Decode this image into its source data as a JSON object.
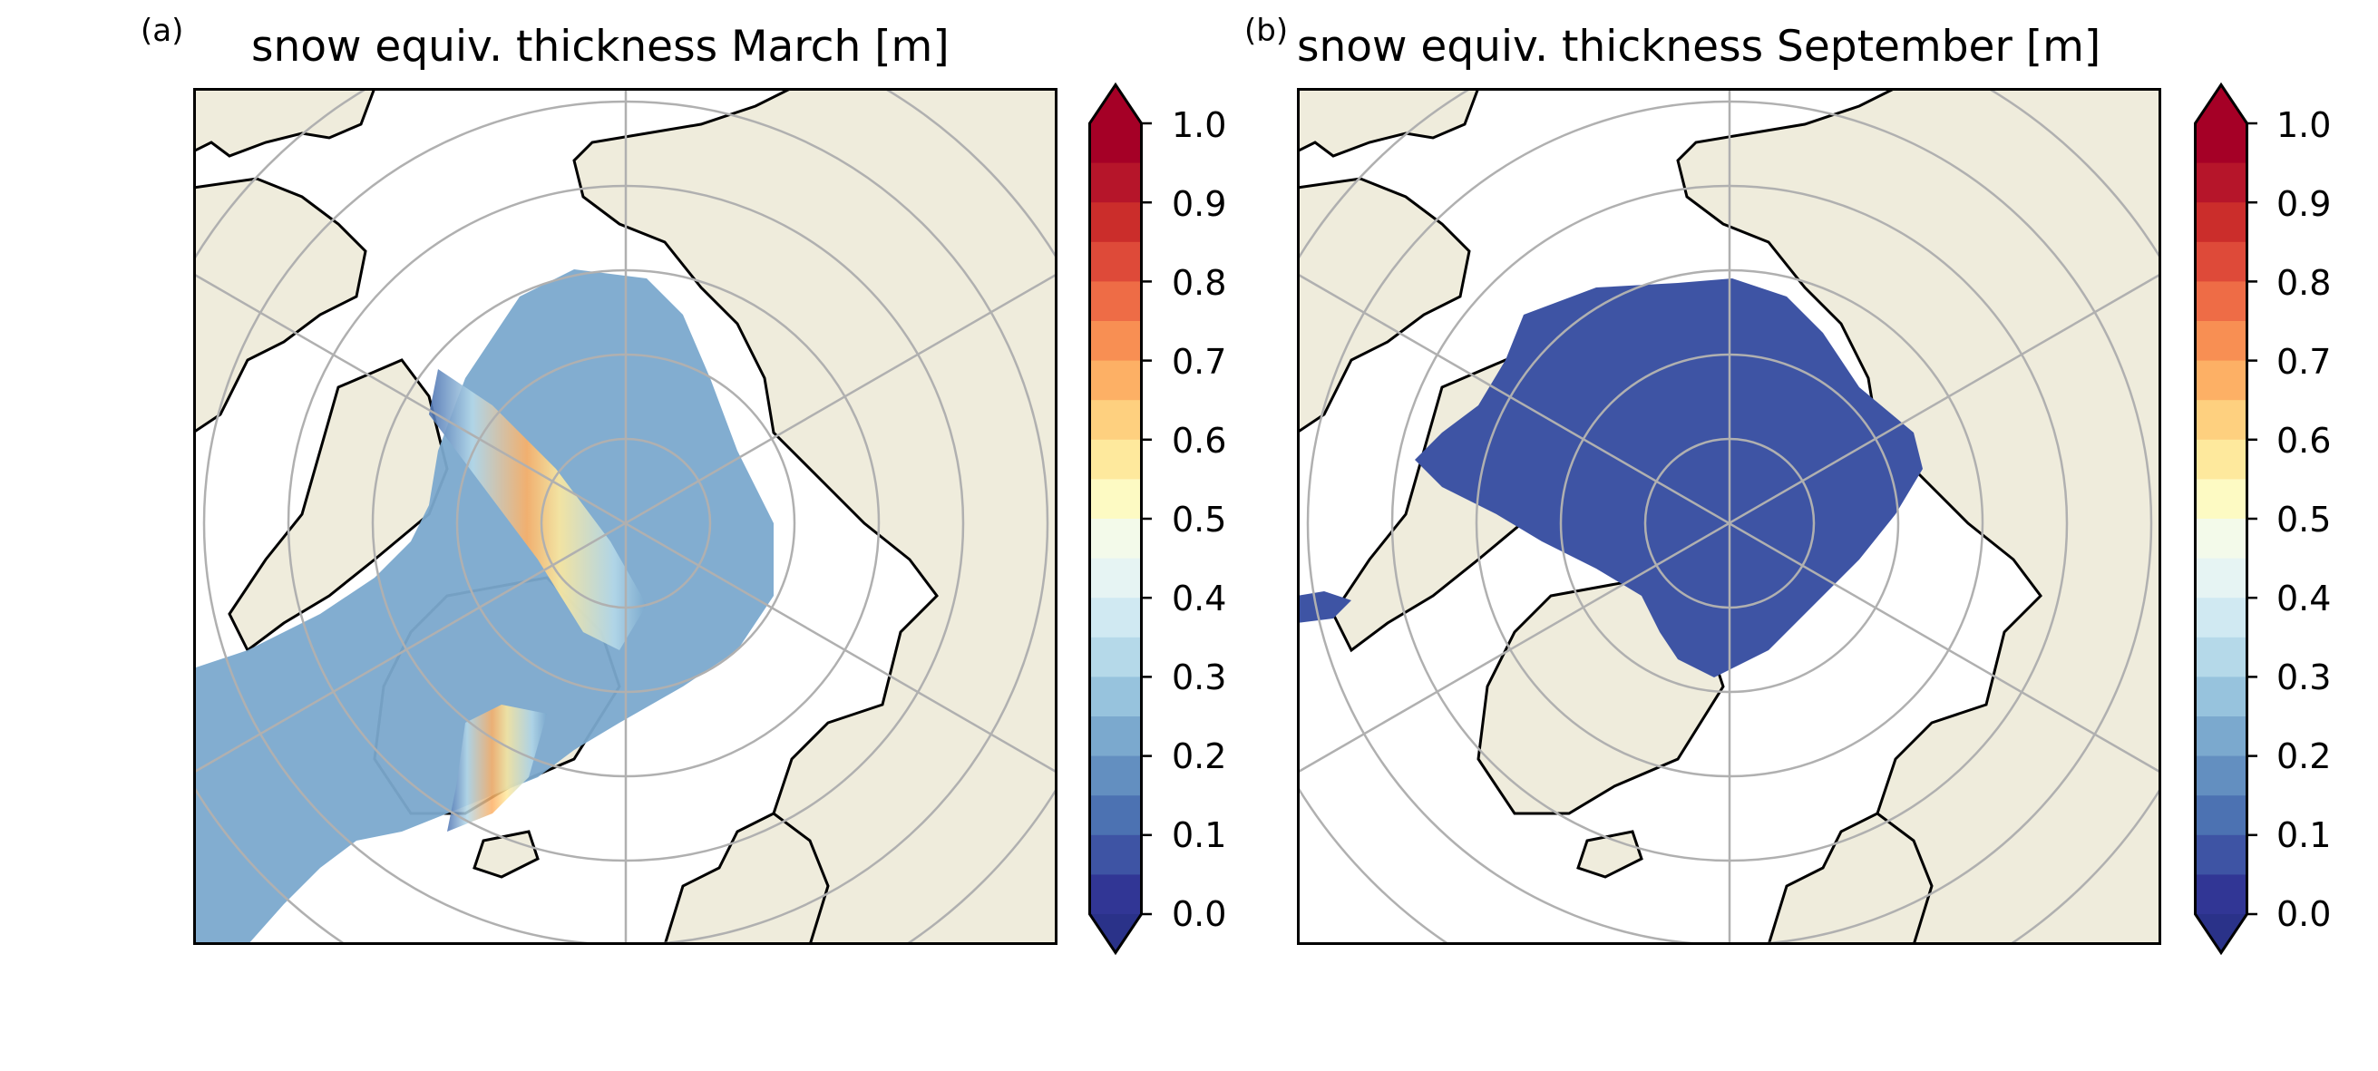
{
  "panels": [
    {
      "letter": "(a)",
      "title": "snow equiv. thickness March [m]",
      "month": "March",
      "colorbar": {
        "ticks": [
          "0.0",
          "0.1",
          "0.2",
          "0.3",
          "0.4",
          "0.5",
          "0.6",
          "0.7",
          "0.8",
          "0.9",
          "1.0"
        ],
        "range": [
          0.0,
          1.0
        ],
        "extend": "both"
      }
    },
    {
      "letter": "(b)",
      "title": "snow equiv. thickness September [m]",
      "month": "September",
      "colorbar": {
        "ticks": [
          "0.0",
          "0.1",
          "0.2",
          "0.3",
          "0.4",
          "0.5",
          "0.6",
          "0.7",
          "0.8",
          "0.9",
          "1.0"
        ],
        "range": [
          0.0,
          1.0
        ],
        "extend": "both"
      }
    }
  ],
  "colors": {
    "land": "#efecdc",
    "ocean": "#ffffff",
    "coastline": "#000000",
    "gridlines": "#b0b0b0",
    "colormap": [
      "#313695",
      "#3e54a4",
      "#4c72b2",
      "#638fc0",
      "#7ba9ce",
      "#97c3dd",
      "#b5d9e9",
      "#d0e9f2",
      "#e6f4f3",
      "#f3faea",
      "#fdfac3",
      "#fee99d",
      "#fed07f",
      "#fdb065",
      "#f88f53",
      "#ee6c46",
      "#de4a39",
      "#cb2d2b",
      "#b6152a",
      "#a50026"
    ]
  }
}
